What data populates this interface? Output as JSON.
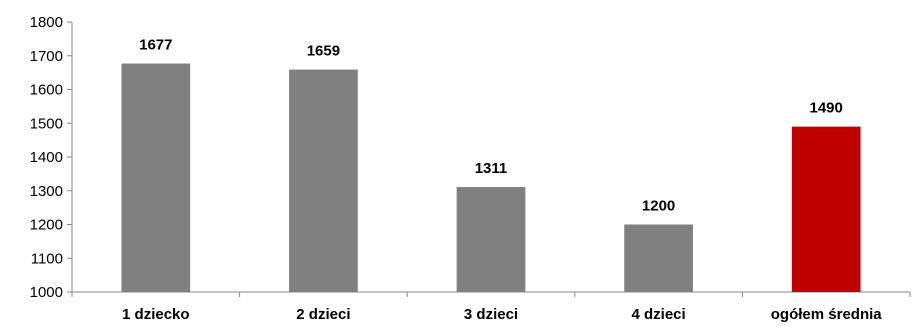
{
  "chart_data": {
    "type": "bar",
    "title": "",
    "xlabel": "",
    "ylabel": "",
    "categories": [
      "1 dziecko",
      "2 dzieci",
      "3 dzieci",
      "4 dzieci",
      "ogółem średnia"
    ],
    "values": [
      1677,
      1659,
      1311,
      1200,
      1490
    ],
    "data_labels": [
      "1677",
      "1659",
      "1311",
      "1200",
      "1490"
    ],
    "bar_colors": [
      "#808080",
      "#808080",
      "#808080",
      "#808080",
      "#c00000"
    ],
    "ylim": [
      1000,
      1800
    ],
    "yticks": [
      1000,
      1100,
      1200,
      1300,
      1400,
      1500,
      1600,
      1700,
      1800
    ],
    "ytick_labels": [
      "1000",
      "1100",
      "1200",
      "1300",
      "1400",
      "1500",
      "1600",
      "1700",
      "1800"
    ],
    "grid": false,
    "legend": "none"
  }
}
